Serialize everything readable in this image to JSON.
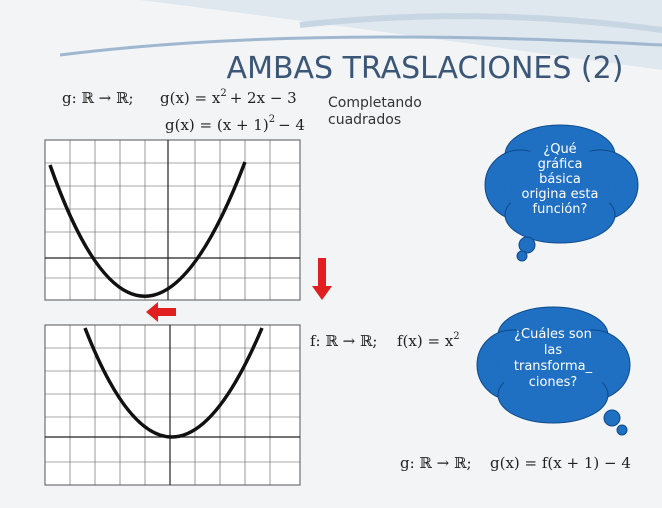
{
  "title": "AMBAS TRASLACIONES (2)",
  "formula_g": {
    "domain": "g: ℝ → ℝ;",
    "lhs": "g(x) = x",
    "exp": "2",
    "rhs": "+ 2x − 3"
  },
  "formula_completed": {
    "lhs": "g(x) = (x + 1)",
    "exp": "2",
    "rhs": "− 4"
  },
  "note": [
    "Completando",
    "cuadrados"
  ],
  "formula_f": {
    "domain": "f: ℝ → ℝ;",
    "lhs": "f(x) = x",
    "exp": "2"
  },
  "formula_result": {
    "domain": "g: ℝ → ℝ;",
    "expr": "g(x) = f(x + 1) − 4"
  },
  "bubbles": [
    {
      "lines": [
        "¿Qué",
        "gráfica",
        "básica",
        "origina esta",
        "función?"
      ]
    },
    {
      "lines": [
        "¿Cuáles son",
        "las",
        "transforma_",
        "ciones?"
      ]
    }
  ]
}
